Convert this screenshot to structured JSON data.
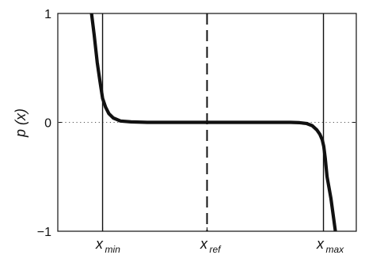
{
  "chart_data": {
    "type": "line",
    "title": "",
    "ylabel": "p (x)",
    "xlabel": "",
    "ylim": [
      -1,
      1
    ],
    "xlim": [
      0,
      1
    ],
    "grid": false,
    "y_ticks": [
      {
        "value": 1,
        "label": "1"
      },
      {
        "value": 0,
        "label": "0"
      },
      {
        "value": -1,
        "label": "−1"
      }
    ],
    "x_ticks": [
      {
        "value": 0.15,
        "label": "x",
        "sub": "min"
      },
      {
        "value": 0.5,
        "label": "x",
        "sub": "ref"
      },
      {
        "value": 0.89,
        "label": "x",
        "sub": "max"
      }
    ],
    "vertical_lines": [
      {
        "x": 0.15,
        "style": "solid"
      },
      {
        "x": 0.5,
        "style": "dashed"
      },
      {
        "x": 0.89,
        "style": "solid"
      }
    ],
    "reference_line": {
      "y": 0,
      "style": "dotted"
    },
    "series": [
      {
        "color": "#111111",
        "x": [
          0.113,
          0.122,
          0.132,
          0.141,
          0.15,
          0.16,
          0.171,
          0.186,
          0.21,
          0.245,
          0.3,
          0.4,
          0.5,
          0.6,
          0.7,
          0.78,
          0.81,
          0.833,
          0.852,
          0.868,
          0.878,
          0.886,
          0.891,
          0.896,
          0.902,
          0.915,
          0.93
        ],
        "y": [
          1.0,
          0.8,
          0.55,
          0.38,
          0.22,
          0.14,
          0.08,
          0.04,
          0.012,
          0.004,
          0.0,
          0.0,
          0.0,
          0.0,
          0.0,
          0.0,
          -0.003,
          -0.01,
          -0.03,
          -0.07,
          -0.11,
          -0.16,
          -0.22,
          -0.33,
          -0.5,
          -0.7,
          -1.0
        ]
      }
    ]
  }
}
